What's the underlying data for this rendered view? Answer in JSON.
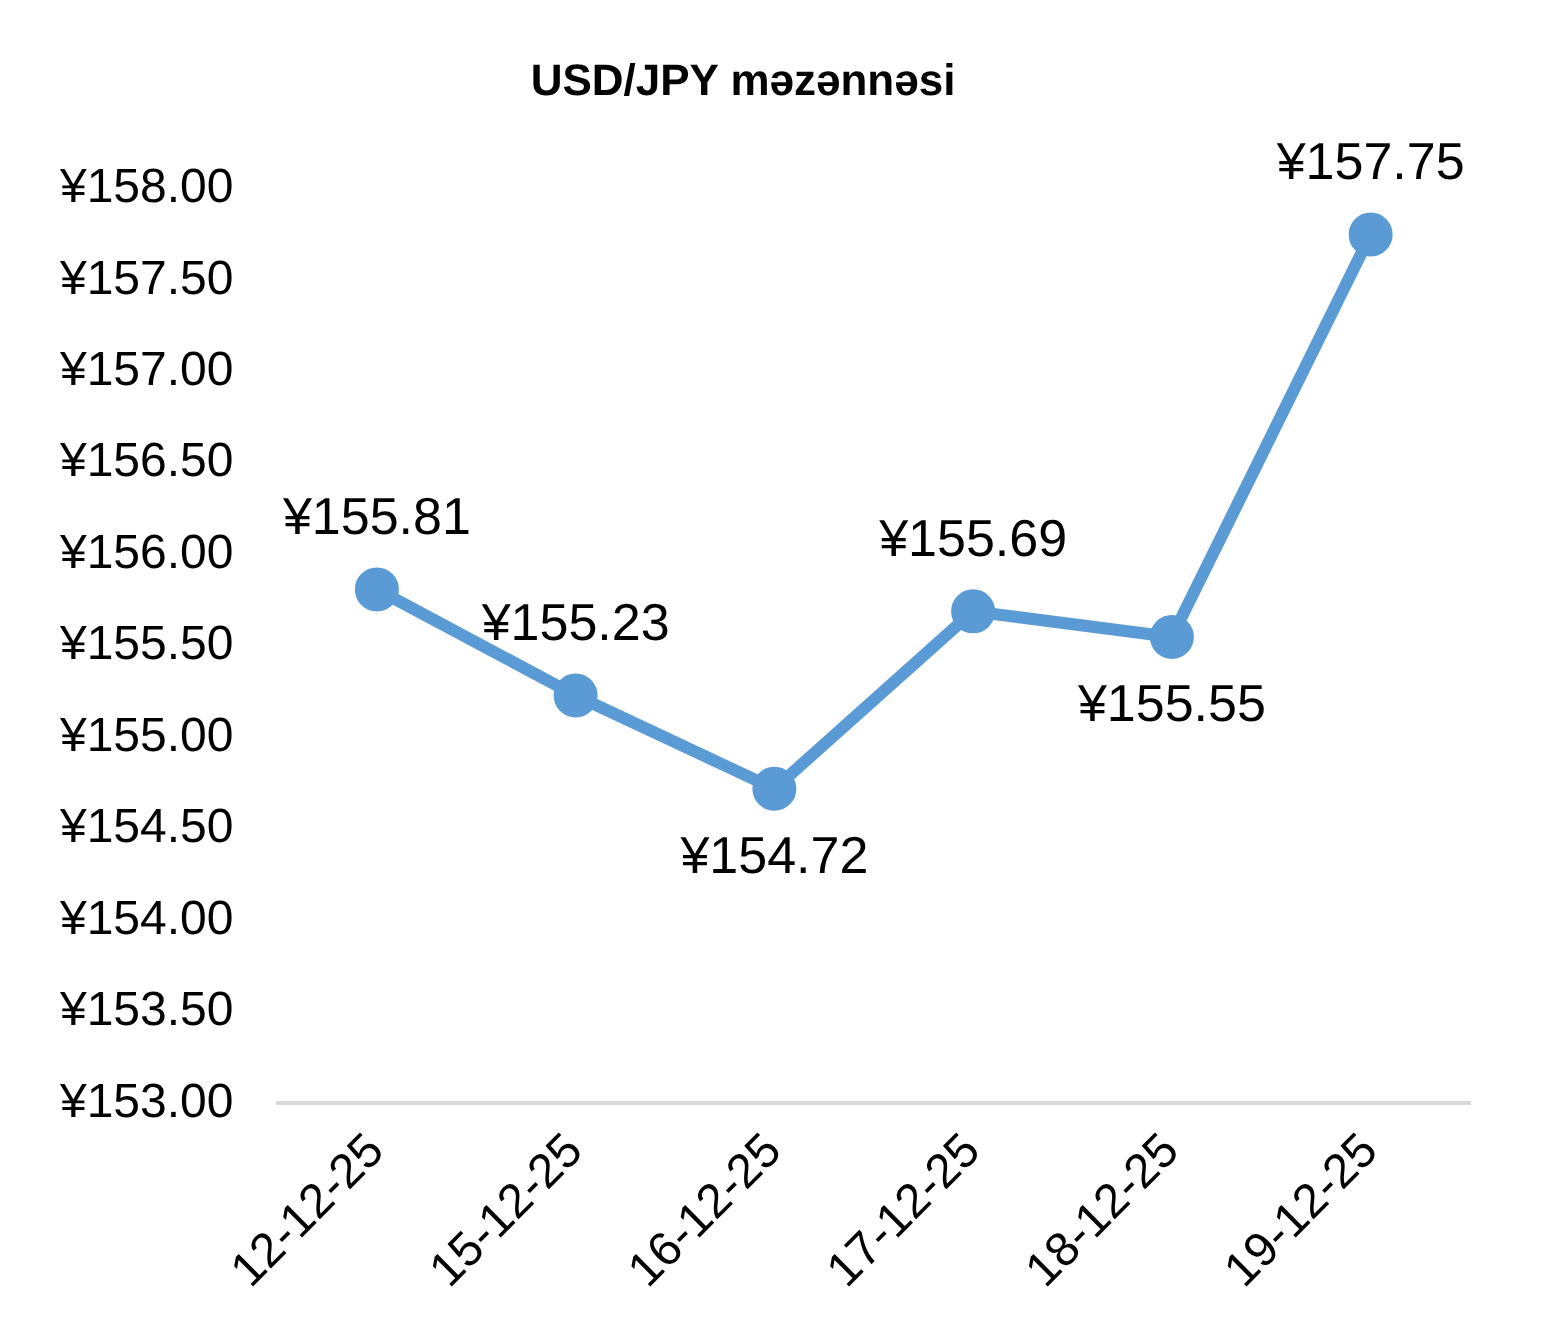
{
  "chart_data": {
    "type": "line",
    "title": "USD/JPY məzənnəsi",
    "categories": [
      "12-12-25",
      "15-12-25",
      "16-12-25",
      "17-12-25",
      "18-12-25",
      "19-12-25"
    ],
    "series": [
      {
        "color": "#5b9bd5",
        "values": [
          155.81,
          155.23,
          154.72,
          155.69,
          155.55,
          157.75
        ],
        "value_labels": [
          "¥155.81",
          "¥155.23",
          "¥154.72",
          "¥155.69",
          "¥155.55",
          "¥157.75"
        ]
      }
    ],
    "ylim": [
      153,
      158
    ],
    "yticks": [
      {
        "value": 153,
        "label": "¥153.00"
      },
      {
        "value": 153.5,
        "label": "¥153.50"
      },
      {
        "value": 154,
        "label": "¥154.00"
      },
      {
        "value": 154.5,
        "label": "¥154.50"
      },
      {
        "value": 155,
        "label": "¥155.00"
      },
      {
        "value": 155.5,
        "label": "¥155.50"
      },
      {
        "value": 156,
        "label": "¥156.00"
      },
      {
        "value": 156.5,
        "label": "¥156.50"
      },
      {
        "value": 157,
        "label": "¥157.00"
      },
      {
        "value": 157.5,
        "label": "¥157.50"
      },
      {
        "value": 158,
        "label": "¥158.00"
      }
    ],
    "grid": false,
    "legend": false,
    "marker": "circle",
    "line_style": "solid"
  }
}
